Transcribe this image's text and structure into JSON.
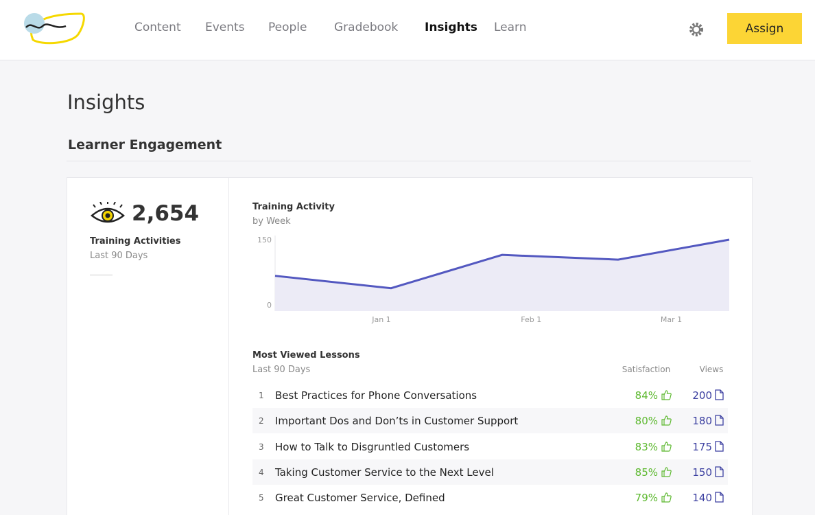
{
  "nav": {
    "items": [
      "Content",
      "Events",
      "People",
      "Gradebook",
      "Insights",
      "Learn"
    ],
    "active": 4,
    "button": "Assign"
  },
  "page": {
    "title": "Insights",
    "section": "Learner Engagement"
  },
  "stat": {
    "value": "2,654",
    "label": "Training Activities",
    "period": "Last 90 Days"
  },
  "chart_data": {
    "type": "line",
    "title": "Training Activity",
    "subtitle": "by Week",
    "x": [
      -22,
      2,
      25,
      49,
      72
    ],
    "values": [
      74,
      48,
      118,
      108,
      150
    ],
    "color": "#5358c0",
    "xlim": [
      -22,
      72
    ],
    "xticks": [
      {
        "value": 0,
        "label": "Jan 1"
      },
      {
        "value": 31,
        "label": "Feb 1"
      },
      {
        "value": 60,
        "label": "Mar 1"
      }
    ],
    "ylim": [
      0,
      150
    ],
    "yticks": [
      {
        "value": 0,
        "label": "0"
      },
      {
        "value": 150,
        "label": "150"
      }
    ]
  },
  "lessons": {
    "title": "Most Viewed Lessons",
    "period": "Last 90 Days",
    "columns": [
      "Satisfaction",
      "Views"
    ],
    "rows": [
      {
        "rank": 1,
        "title": "Best Practices for Phone Conversations",
        "satisfaction": "84%",
        "views": 200
      },
      {
        "rank": 2,
        "title": "Important Dos and Don’ts in Customer Support",
        "satisfaction": "80%",
        "views": 180
      },
      {
        "rank": 3,
        "title": "How to Talk to Disgruntled Customers",
        "satisfaction": "83%",
        "views": 175
      },
      {
        "rank": 4,
        "title": "Taking Customer Service to the Next Level",
        "satisfaction": "85%",
        "views": 150
      },
      {
        "rank": 5,
        "title": "Great Customer Service, Defined",
        "satisfaction": "79%",
        "views": 140
      }
    ]
  }
}
